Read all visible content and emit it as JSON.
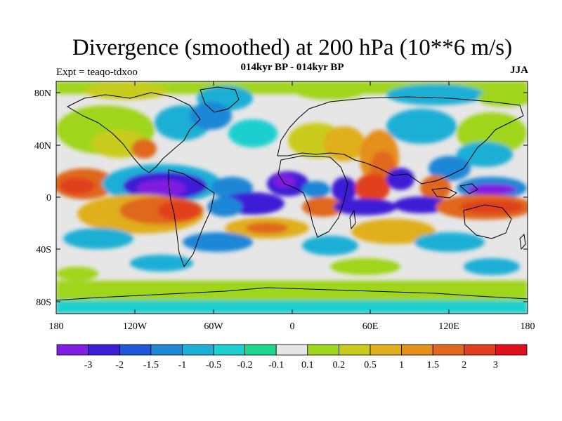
{
  "title": "Divergence (smoothed) at 200 hPa (10**6 m/s)",
  "subtitle": "014kyr BP - 014kyr BP",
  "experiment": "Expt = teaqo-tdxoo",
  "season": "JJA",
  "lat_labels": [
    "80N",
    "40N",
    "0",
    "40S",
    "80S"
  ],
  "lon_labels": [
    "180",
    "120W",
    "60W",
    "0",
    "60E",
    "120E",
    "180"
  ],
  "colorbar": {
    "colors": [
      "#7f1fe0",
      "#3d1fd6",
      "#1f57d6",
      "#1f87d6",
      "#1fafd6",
      "#1fcfcf",
      "#1fd68f",
      "#e6e6e6",
      "#9fd61f",
      "#c9cc1f",
      "#e0af1f",
      "#e58f1f",
      "#e0671f",
      "#e03f1f",
      "#e0101f"
    ],
    "labels": [
      "-3",
      "-2",
      "-1.5",
      "-1",
      "-0.5",
      "-0.2",
      "-0.1",
      "0.1",
      "0.2",
      "0.5",
      "1",
      "1.5",
      "2",
      "3"
    ]
  }
}
